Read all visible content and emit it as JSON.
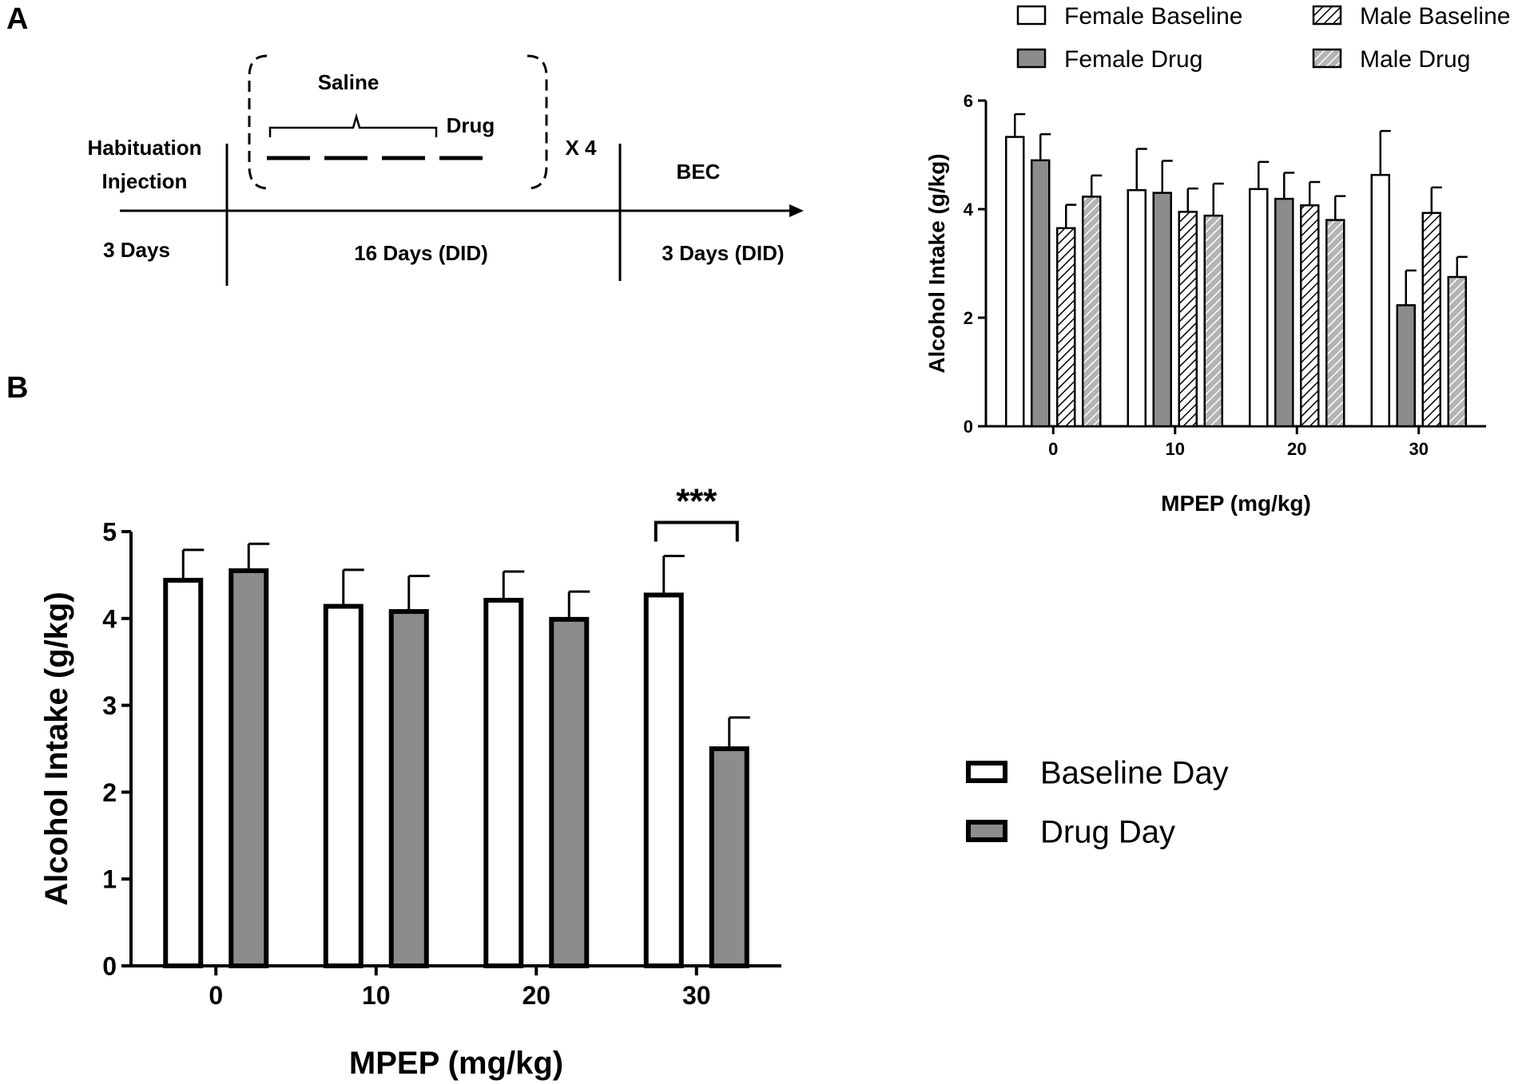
{
  "panel_a": {
    "label": "A",
    "timeline": {
      "habituation_line1": "Habituation",
      "habituation_line2": "Injection",
      "habituation_days": "3 Days",
      "saline": "Saline",
      "drug": "Drug",
      "repeat": "X 4",
      "did_days": "16 Days (DID)",
      "bec": "BEC",
      "bec_days": "3 Days (DID)"
    }
  },
  "panel_b": {
    "label": "B"
  },
  "chart_data": [
    {
      "id": "sex-chart",
      "type": "bar",
      "title": "",
      "xlabel": "MPEP (mg/kg)",
      "ylabel": "Alcohol Intake (g/kg)",
      "ylim": [
        0,
        6
      ],
      "yticks": [
        "0",
        "2",
        "4",
        "6"
      ],
      "categories": [
        "0",
        "10",
        "20",
        "30"
      ],
      "legend_position": "top",
      "series": [
        {
          "name": "Female Baseline",
          "fill": "#ffffff",
          "pattern": "none",
          "values": [
            5.33,
            4.35,
            4.37,
            4.63
          ],
          "errors": [
            0.42,
            0.76,
            0.5,
            0.81
          ]
        },
        {
          "name": "Female Drug",
          "fill": "#8c8c8c",
          "pattern": "none",
          "values": [
            4.9,
            4.3,
            4.19,
            2.23
          ],
          "errors": [
            0.48,
            0.59,
            0.48,
            0.64
          ]
        },
        {
          "name": "Male Baseline",
          "fill": "#ffffff",
          "pattern": "hatch",
          "values": [
            3.65,
            3.95,
            4.07,
            3.93
          ],
          "errors": [
            0.43,
            0.43,
            0.43,
            0.47
          ]
        },
        {
          "name": "Male Drug",
          "fill": "#b4b4b4",
          "pattern": "hatch",
          "values": [
            4.23,
            3.88,
            3.8,
            2.75
          ],
          "errors": [
            0.39,
            0.59,
            0.44,
            0.37
          ]
        }
      ]
    },
    {
      "id": "combined-chart",
      "type": "bar",
      "title": "",
      "xlabel": "MPEP (mg/kg)",
      "ylabel": "Alcohol Intake (g/kg)",
      "ylim": [
        0,
        5
      ],
      "yticks": [
        "0",
        "1",
        "2",
        "3",
        "4",
        "5"
      ],
      "categories": [
        "0",
        "10",
        "20",
        "30"
      ],
      "legend_position": "right",
      "series": [
        {
          "name": "Baseline Day",
          "fill": "#ffffff",
          "values": [
            4.44,
            4.14,
            4.21,
            4.27
          ],
          "errors": [
            0.35,
            0.42,
            0.33,
            0.45
          ]
        },
        {
          "name": "Drug Day",
          "fill": "#8c8c8c",
          "values": [
            4.55,
            4.08,
            3.99,
            2.5
          ],
          "errors": [
            0.31,
            0.41,
            0.32,
            0.36
          ]
        }
      ],
      "annotations": [
        {
          "text": "***",
          "category": "30"
        }
      ]
    }
  ]
}
